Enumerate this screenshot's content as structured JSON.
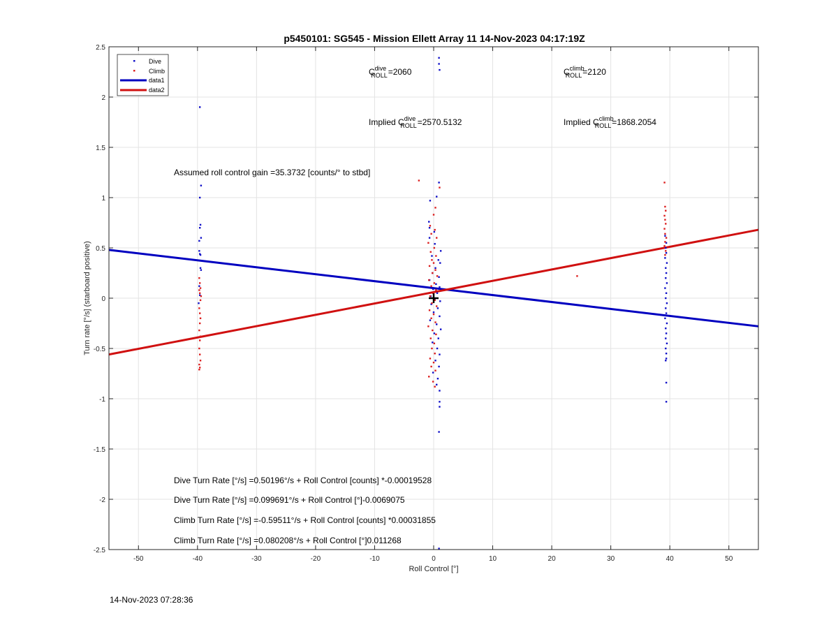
{
  "chart_data": {
    "type": "scatter",
    "title": "p5450101: SG545 - Mission Ellett Array 11 14-Nov-2023 04:17:19Z",
    "xlabel": "Roll Control [°]",
    "ylabel": "Turn rate [°/s] (starboard positive)",
    "xlim": [
      -55,
      55
    ],
    "ylim": [
      -2.5,
      2.5
    ],
    "xticks": [
      -50,
      -40,
      -30,
      -20,
      -10,
      0,
      10,
      20,
      30,
      40,
      50
    ],
    "yticks": [
      -2.5,
      -2,
      -1.5,
      -1,
      -0.5,
      0,
      0.5,
      1,
      1.5,
      2,
      2.5
    ],
    "xtick_labels": [
      "-50",
      "-40",
      "-30",
      "-20",
      "-10",
      "0",
      "10",
      "20",
      "30",
      "40",
      "50"
    ],
    "ytick_labels": [
      "-2.5",
      "-2",
      "-1.5",
      "-1",
      "-0.5",
      "0",
      "0.5",
      "1",
      "1.5",
      "2",
      "2.5"
    ],
    "grid": true,
    "legend_position": "top-left",
    "colors": {
      "dive": "#1010c8",
      "climb": "#dc1e1e",
      "data1": "#0000c0",
      "data2": "#d01010"
    },
    "series": [
      {
        "name": "Dive",
        "kind": "points",
        "color": "#1010c8",
        "points": [
          [
            -39.6,
            1.9
          ],
          [
            -39.4,
            1.12
          ],
          [
            -39.6,
            1.0
          ],
          [
            -39.5,
            0.73
          ],
          [
            -39.6,
            0.7
          ],
          [
            -39.4,
            0.6
          ],
          [
            -39.7,
            0.57
          ],
          [
            -39.7,
            0.47
          ],
          [
            -39.6,
            0.44
          ],
          [
            -39.5,
            0.43
          ],
          [
            -39.5,
            0.3
          ],
          [
            -39.4,
            0.28
          ],
          [
            -39.7,
            0.12
          ],
          [
            -39.6,
            0.03
          ],
          [
            -39.8,
            -0.05
          ],
          [
            0.9,
            2.39
          ],
          [
            0.9,
            2.33
          ],
          [
            1.0,
            2.27
          ],
          [
            0.9,
            1.15
          ],
          [
            0.5,
            1.01
          ],
          [
            -0.6,
            0.97
          ],
          [
            -0.8,
            0.76
          ],
          [
            -0.7,
            0.7
          ],
          [
            0.1,
            0.66
          ],
          [
            -0.7,
            0.6
          ],
          [
            0.2,
            0.54
          ],
          [
            1.2,
            0.47
          ],
          [
            -0.3,
            0.42
          ],
          [
            0.8,
            0.38
          ],
          [
            1.1,
            0.35
          ],
          [
            0.3,
            0.3
          ],
          [
            -0.2,
            0.25
          ],
          [
            0.9,
            0.21
          ],
          [
            -0.7,
            0.18
          ],
          [
            0.4,
            0.14
          ],
          [
            1.0,
            0.11
          ],
          [
            -0.1,
            0.09
          ],
          [
            0.6,
            0.05
          ],
          [
            -0.5,
            0.02
          ],
          [
            0.2,
            -0.01
          ],
          [
            1.1,
            -0.03
          ],
          [
            -0.4,
            -0.06
          ],
          [
            0.7,
            -0.1
          ],
          [
            0.0,
            -0.14
          ],
          [
            1.0,
            -0.18
          ],
          [
            -0.6,
            -0.22
          ],
          [
            0.5,
            -0.26
          ],
          [
            1.2,
            -0.31
          ],
          [
            0.1,
            -0.35
          ],
          [
            0.8,
            -0.4
          ],
          [
            -0.2,
            -0.44
          ],
          [
            0.6,
            -0.5
          ],
          [
            1.0,
            -0.56
          ],
          [
            0.3,
            -0.62
          ],
          [
            0.9,
            -0.68
          ],
          [
            -0.1,
            -0.74
          ],
          [
            0.7,
            -0.8
          ],
          [
            0.5,
            -0.86
          ],
          [
            1.0,
            -0.92
          ],
          [
            1.0,
            -1.03
          ],
          [
            1.0,
            -1.08
          ],
          [
            0.9,
            -1.33
          ],
          [
            0.9,
            -2.49
          ],
          [
            39.2,
            0.62
          ],
          [
            39.4,
            0.55
          ],
          [
            39.3,
            0.5
          ],
          [
            39.4,
            0.45
          ],
          [
            39.2,
            0.4
          ],
          [
            39.5,
            0.35
          ],
          [
            39.3,
            0.3
          ],
          [
            39.4,
            0.25
          ],
          [
            39.3,
            0.2
          ],
          [
            39.5,
            0.15
          ],
          [
            39.2,
            0.1
          ],
          [
            39.4,
            0.05
          ],
          [
            39.3,
            0.0
          ],
          [
            39.5,
            -0.05
          ],
          [
            39.3,
            -0.1
          ],
          [
            39.4,
            -0.15
          ],
          [
            39.2,
            -0.2
          ],
          [
            39.5,
            -0.25
          ],
          [
            39.3,
            -0.3
          ],
          [
            39.4,
            -0.35
          ],
          [
            39.3,
            -0.4
          ],
          [
            39.5,
            -0.45
          ],
          [
            39.3,
            -0.5
          ],
          [
            39.4,
            -0.55
          ],
          [
            39.4,
            -0.6
          ],
          [
            39.3,
            -0.62
          ],
          [
            39.4,
            -0.84
          ],
          [
            39.4,
            -1.03
          ]
        ]
      },
      {
        "name": "Climb",
        "kind": "points",
        "color": "#dc1e1e",
        "points": [
          [
            -39.7,
            0.2
          ],
          [
            -39.6,
            0.15
          ],
          [
            -39.5,
            0.1
          ],
          [
            -39.7,
            0.08
          ],
          [
            -39.6,
            0.05
          ],
          [
            -39.4,
            0.02
          ],
          [
            -39.5,
            -0.02
          ],
          [
            -39.7,
            -0.1
          ],
          [
            -39.6,
            -0.15
          ],
          [
            -39.5,
            -0.2
          ],
          [
            -39.6,
            -0.25
          ],
          [
            -39.7,
            -0.32
          ],
          [
            -39.5,
            -0.38
          ],
          [
            -39.6,
            -0.42
          ],
          [
            -39.7,
            -0.5
          ],
          [
            -39.6,
            -0.56
          ],
          [
            -39.5,
            -0.62
          ],
          [
            -39.7,
            -0.66
          ],
          [
            -39.6,
            -0.69
          ],
          [
            -39.7,
            -0.71
          ],
          [
            -2.5,
            1.17
          ],
          [
            1.0,
            1.1
          ],
          [
            0.3,
            0.9
          ],
          [
            0.0,
            0.83
          ],
          [
            -0.6,
            0.72
          ],
          [
            0.2,
            0.68
          ],
          [
            -0.4,
            0.64
          ],
          [
            0.5,
            0.6
          ],
          [
            -0.9,
            0.55
          ],
          [
            0.1,
            0.5
          ],
          [
            -0.5,
            0.46
          ],
          [
            0.4,
            0.42
          ],
          [
            -0.3,
            0.38
          ],
          [
            0.0,
            0.35
          ],
          [
            -0.7,
            0.32
          ],
          [
            0.3,
            0.28
          ],
          [
            -0.2,
            0.25
          ],
          [
            0.6,
            0.22
          ],
          [
            -0.8,
            0.18
          ],
          [
            0.1,
            0.15
          ],
          [
            -0.4,
            0.12
          ],
          [
            0.4,
            0.08
          ],
          [
            -0.1,
            0.05
          ],
          [
            -0.6,
            0.02
          ],
          [
            0.2,
            -0.02
          ],
          [
            -0.3,
            -0.05
          ],
          [
            0.5,
            -0.08
          ],
          [
            -0.7,
            -0.12
          ],
          [
            0.0,
            -0.16
          ],
          [
            -0.4,
            -0.2
          ],
          [
            0.3,
            -0.24
          ],
          [
            -0.9,
            -0.28
          ],
          [
            -0.2,
            -0.32
          ],
          [
            0.4,
            -0.36
          ],
          [
            -0.5,
            -0.4
          ],
          [
            0.1,
            -0.45
          ],
          [
            -0.3,
            -0.5
          ],
          [
            0.2,
            -0.55
          ],
          [
            -0.6,
            -0.6
          ],
          [
            0.0,
            -0.64
          ],
          [
            -0.4,
            -0.68
          ],
          [
            0.3,
            -0.72
          ],
          [
            -0.8,
            -0.78
          ],
          [
            -0.1,
            -0.83
          ],
          [
            0.2,
            -0.88
          ],
          [
            24.3,
            0.22
          ],
          [
            39.1,
            1.15
          ],
          [
            39.2,
            0.91
          ],
          [
            39.3,
            0.87
          ],
          [
            39.1,
            0.82
          ],
          [
            39.2,
            0.78
          ],
          [
            39.3,
            0.74
          ],
          [
            39.1,
            0.69
          ],
          [
            39.2,
            0.64
          ],
          [
            39.4,
            0.6
          ],
          [
            39.2,
            0.56
          ],
          [
            39.1,
            0.52
          ],
          [
            39.3,
            0.47
          ],
          [
            39.2,
            0.43
          ]
        ]
      },
      {
        "name": "data1",
        "kind": "line",
        "color": "#0000c0",
        "x": [
          -55,
          55
        ],
        "y": [
          0.48,
          -0.28
        ]
      },
      {
        "name": "data2",
        "kind": "line",
        "color": "#d01010",
        "x": [
          -55,
          55
        ],
        "y": [
          -0.56,
          0.68
        ]
      }
    ],
    "center_marker": [
      0.0,
      0.0
    ],
    "annotations": {
      "c_roll_dive_sup": "dive",
      "c_roll_dive_value": "=2060",
      "c_roll_climb_sup": "climb",
      "c_roll_climb_value": "=2120",
      "implied_dive_prefix": "Implied C",
      "implied_dive_sup": "dive",
      "implied_dive_value": "=2570.5132",
      "implied_climb_prefix": "Implied C",
      "implied_climb_sup": "climb",
      "implied_climb_value": "=1868.2054",
      "c_letter": "C",
      "roll_sub": "ROLL",
      "gain": "Assumed roll control gain =35.3732 [counts/° to stbd]",
      "eq1": "Dive Turn Rate [°/s] =0.50196°/s + Roll Control [counts] *-0.00019528",
      "eq2": "Dive Turn Rate [°/s] =0.099691°/s + Roll Control [°]-0.0069075",
      "eq3": "Climb Turn Rate [°/s] =-0.59511°/s + Roll Control [counts] *0.00031855",
      "eq4": "Climb Turn Rate [°/s] =0.080208°/s + Roll Control [°]0.011268"
    }
  },
  "footer_timestamp": "14-Nov-2023 07:28:36"
}
